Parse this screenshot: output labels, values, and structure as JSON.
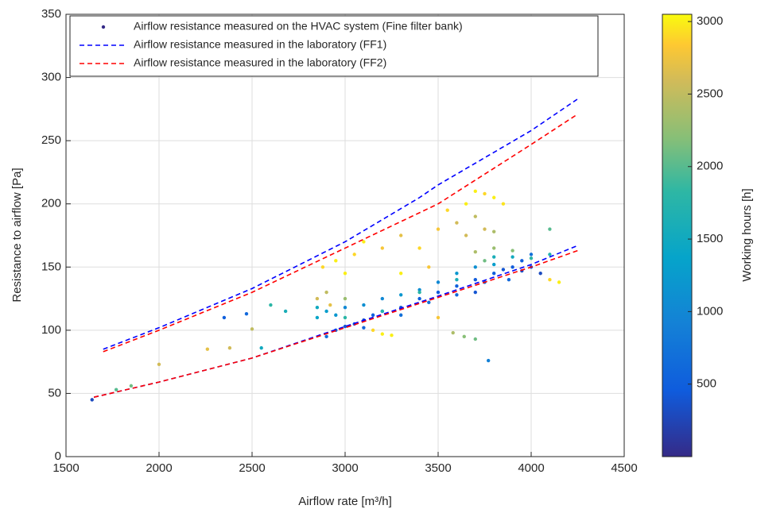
{
  "chart_data": {
    "type": "scatter",
    "xlabel": "Airflow rate [m³/h]",
    "ylabel": "Resistance to airflow [Pa]",
    "clabel": "Working hours [h]",
    "xlim": [
      1500,
      4500
    ],
    "xticks": [
      1500,
      2000,
      2500,
      3000,
      3500,
      4000,
      4500
    ],
    "ylim": [
      0,
      350
    ],
    "yticks": [
      0,
      50,
      100,
      150,
      200,
      250,
      300,
      350
    ],
    "clim": [
      0,
      3050
    ],
    "cticks": [
      500,
      1000,
      1500,
      2000,
      2500,
      3000
    ],
    "grid": true,
    "legend": "top-left",
    "series": [
      {
        "name": "Airflow resistance measured on the HVAC system (Fine filter bank)",
        "kind": "points",
        "x": [
          1640,
          3000,
          3050,
          3100,
          3150,
          3200,
          3300,
          3400,
          3500,
          3600,
          3700,
          3800,
          3850,
          3900,
          3950,
          4000,
          4050,
          3950,
          3880,
          3750,
          3600,
          3450,
          3300,
          3100,
          2900,
          2950,
          3770,
          2350,
          2470,
          4000,
          3700,
          2850,
          2900,
          2950,
          3000,
          3100,
          3200,
          3300,
          3400,
          3500,
          3600,
          3700,
          3800,
          3900,
          4000,
          4100,
          3000,
          3200,
          3400,
          3600,
          3800,
          2850,
          2600,
          2550,
          2680,
          1770,
          1850,
          2000,
          2260,
          2380,
          2500,
          2850,
          2900,
          2880,
          2950,
          3000,
          3050,
          3100,
          3200,
          3300,
          3400,
          3500,
          3550,
          3600,
          3650,
          3700,
          3750,
          3800,
          3850,
          3700,
          3750,
          3800,
          3650,
          3700,
          3800,
          3900,
          3750,
          4100,
          4150,
          3000,
          2920,
          3150,
          3200,
          3250,
          3580,
          3640,
          3700,
          3500,
          3300,
          3450,
          4100
        ],
        "values": [
          45,
          103,
          105,
          108,
          112,
          115,
          118,
          125,
          130,
          135,
          140,
          145,
          148,
          150,
          147,
          150,
          145,
          155,
          140,
          138,
          128,
          122,
          112,
          102,
          95,
          100,
          76,
          110,
          113,
          160,
          130,
          118,
          115,
          112,
          118,
          120,
          125,
          128,
          132,
          138,
          145,
          150,
          152,
          158,
          157,
          160,
          110,
          115,
          130,
          140,
          158,
          110,
          120,
          86,
          115,
          53,
          56,
          73,
          85,
          86,
          101,
          125,
          130,
          150,
          155,
          145,
          160,
          170,
          165,
          175,
          165,
          180,
          195,
          185,
          200,
          210,
          208,
          205,
          200,
          190,
          180,
          178,
          175,
          162,
          165,
          163,
          155,
          140,
          138,
          125,
          120,
          100,
          97,
          96,
          98,
          95,
          93,
          110,
          145,
          150,
          180
        ],
        "hours": [
          300,
          400,
          450,
          350,
          500,
          450,
          400,
          500,
          450,
          500,
          450,
          500,
          400,
          450,
          350,
          400,
          300,
          500,
          600,
          650,
          600,
          700,
          700,
          600,
          650,
          550,
          900,
          500,
          600,
          700,
          400,
          1500,
          1300,
          1200,
          1000,
          1100,
          1000,
          1200,
          1100,
          1000,
          1200,
          1100,
          1300,
          1500,
          1800,
          1700,
          1800,
          1700,
          1800,
          1600,
          1600,
          1400,
          1800,
          1500,
          1600,
          2000,
          2100,
          2600,
          2700,
          2600,
          2500,
          2600,
          2500,
          2900,
          3000,
          3000,
          2900,
          3000,
          2800,
          2700,
          2900,
          2800,
          2900,
          2600,
          3000,
          3000,
          2900,
          3000,
          2950,
          2500,
          2600,
          2400,
          2600,
          2400,
          2300,
          2200,
          2100,
          2900,
          3000,
          2300,
          2700,
          2900,
          3000,
          3000,
          2400,
          2200,
          2100,
          2800,
          3000,
          2800,
          2000
        ]
      },
      {
        "name": "Airflow resistance measured in the laboratory (FF1)",
        "kind": "line",
        "color": "#0000ff",
        "x": [
          1700,
          2000,
          2500,
          3000,
          3400,
          3500,
          4000,
          4250,
          null,
          1650,
          2000,
          2500,
          3000,
          3500,
          4000,
          4250
        ],
        "values": [
          85,
          102,
          133,
          170,
          205,
          215,
          258,
          283,
          null,
          47,
          59,
          78,
          103,
          127,
          152,
          167
        ]
      },
      {
        "name": "Airflow resistance measured in the laboratory (FF2)",
        "kind": "line",
        "color": "#ff0000",
        "x": [
          1700,
          2000,
          2500,
          3000,
          3500,
          4000,
          4250,
          null,
          1650,
          2000,
          2500,
          3000,
          3500,
          4000,
          4250
        ],
        "values": [
          83,
          100,
          130,
          165,
          200,
          247,
          271,
          null,
          47,
          59,
          78,
          102,
          126,
          150,
          163
        ]
      }
    ]
  }
}
